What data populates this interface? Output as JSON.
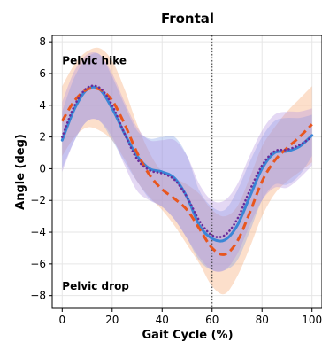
{
  "chart_data": {
    "type": "line",
    "title": "Frontal",
    "xlabel": "Gait Cycle (%)",
    "ylabel": "Angle (deg)",
    "xlim": [
      -4,
      104
    ],
    "ylim": [
      -8.8,
      8.4
    ],
    "xticks": [
      0,
      20,
      40,
      60,
      80,
      100
    ],
    "yticks": [
      -8,
      -6,
      -4,
      -2,
      0,
      2,
      4,
      6,
      8
    ],
    "grid": true,
    "vline_x": 60,
    "annotations": [
      {
        "text": "Pelvic hike",
        "x": 0,
        "y": 6.8
      },
      {
        "text": "Pelvic drop",
        "x": 0,
        "y": -7.4
      }
    ],
    "x": [
      0,
      5,
      10,
      15,
      20,
      25,
      30,
      35,
      40,
      45,
      50,
      55,
      60,
      65,
      70,
      75,
      80,
      85,
      90,
      95,
      100
    ],
    "series": [
      {
        "style": "solid",
        "color": "#3a86d6",
        "band_color": "#7f9ee8",
        "values": [
          1.8,
          3.8,
          5.0,
          5.0,
          3.8,
          2.2,
          0.8,
          0.0,
          -0.2,
          -0.6,
          -1.8,
          -3.6,
          -4.4,
          -4.5,
          -3.6,
          -1.8,
          0.0,
          1.0,
          1.1,
          1.4,
          2.1
        ],
        "upper": [
          3.6,
          5.8,
          7.0,
          7.2,
          5.8,
          4.0,
          2.4,
          1.9,
          2.0,
          2.0,
          0.8,
          -1.4,
          -2.4,
          -2.6,
          -1.4,
          0.4,
          2.0,
          3.0,
          3.2,
          3.2,
          3.4
        ],
        "lower": [
          0.0,
          1.8,
          3.0,
          3.0,
          1.8,
          0.4,
          -0.8,
          -1.9,
          -2.4,
          -3.2,
          -4.4,
          -5.8,
          -6.4,
          -6.4,
          -5.8,
          -4.0,
          -2.0,
          -1.0,
          -1.0,
          -0.4,
          0.8
        ]
      },
      {
        "style": "dashed",
        "color": "#e8561e",
        "band_color": "#f7a26b",
        "values": [
          3.0,
          4.3,
          5.0,
          5.0,
          4.3,
          2.8,
          1.0,
          -0.4,
          -1.3,
          -1.9,
          -2.6,
          -3.8,
          -5.0,
          -5.4,
          -4.6,
          -2.8,
          -0.8,
          0.5,
          1.3,
          2.0,
          2.8
        ],
        "upper": [
          5.2,
          6.6,
          7.4,
          7.6,
          6.8,
          5.0,
          2.8,
          1.0,
          -0.2,
          -0.6,
          -1.0,
          -1.6,
          -2.6,
          -3.0,
          -2.4,
          -0.6,
          1.4,
          2.6,
          3.6,
          4.4,
          5.2
        ],
        "lower": [
          0.8,
          2.0,
          2.6,
          2.4,
          1.8,
          0.6,
          -0.8,
          -1.8,
          -2.6,
          -3.6,
          -4.8,
          -6.0,
          -7.4,
          -7.9,
          -6.8,
          -5.0,
          -3.0,
          -1.6,
          -0.8,
          -0.2,
          0.4
        ]
      },
      {
        "style": "dotted",
        "color": "#6a2c9a",
        "band_color": "#b28ee0",
        "values": [
          2.0,
          4.0,
          5.1,
          5.1,
          4.0,
          2.2,
          0.6,
          -0.1,
          -0.3,
          -0.7,
          -1.8,
          -3.3,
          -4.2,
          -4.2,
          -3.2,
          -1.4,
          0.2,
          1.1,
          1.2,
          1.5,
          2.0
        ],
        "upper": [
          4.2,
          6.2,
          7.2,
          7.2,
          6.0,
          4.2,
          2.6,
          1.8,
          1.8,
          1.8,
          0.8,
          -1.0,
          -2.0,
          -2.0,
          -1.0,
          0.8,
          2.4,
          3.4,
          3.6,
          3.6,
          3.8
        ],
        "lower": [
          -0.2,
          1.8,
          3.0,
          3.0,
          2.0,
          0.2,
          -1.4,
          -2.0,
          -2.4,
          -3.2,
          -4.4,
          -5.6,
          -6.4,
          -6.4,
          -5.4,
          -3.6,
          -2.0,
          -1.2,
          -1.2,
          -0.6,
          0.2
        ]
      }
    ]
  }
}
